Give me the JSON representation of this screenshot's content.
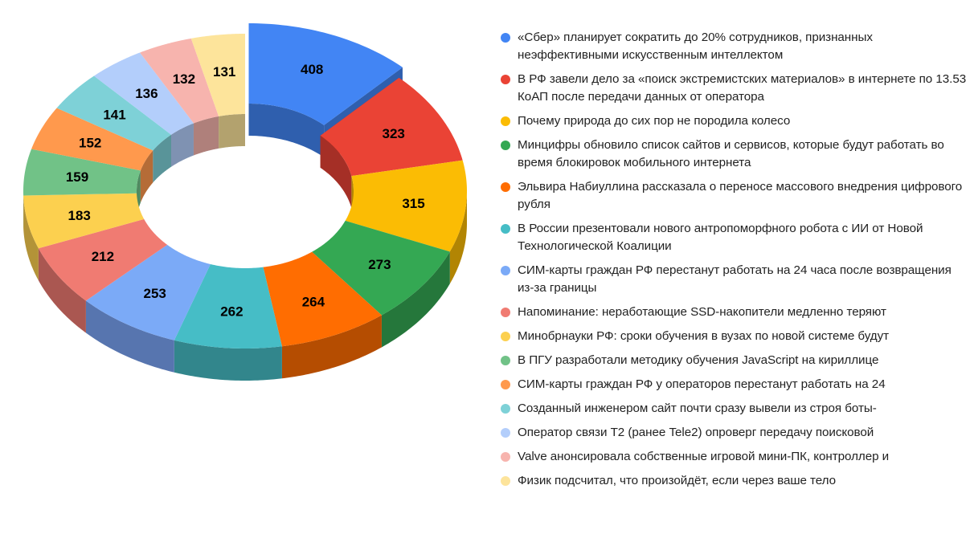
{
  "chart_data": {
    "type": "pie",
    "variant": "3d-donut",
    "title": "",
    "start_angle_deg": 0,
    "direction": "clockwise",
    "exploded_index": 0,
    "legend_position": "right",
    "categories": [
      "«Сбер» планирует сократить до 20% сотрудников, признанных неэффективными искусственным интеллектом",
      "В РФ завели дело за «поиск экстремистских материалов» в интернете по 13.53 КоАП после передачи данных от оператора",
      "Почему природа до сих пор не породила колесо",
      "Минцифры обновило список сайтов и сервисов, которые будут работать во время блокировок мобильного интернета",
      "Эльвира Набиуллина рассказала о переносе массового внедрения цифрового рубля",
      "В России презентовали нового антропоморфного робота с ИИ от Новой Технологической Коалиции",
      "СИМ-карты граждан РФ перестанут работать на 24 часа после возвращения из-за границы",
      "Напоминание: неработающие SSD-накопители медленно теряют",
      "Минобрнауки РФ: сроки обучения в вузах по новой системе будут",
      "В ПГУ разработали методику обучения JavaScript на кириллице",
      "СИМ-карты граждан РФ у операторов перестанут работать на 24",
      "Созданный инженером сайт почти сразу вывели из строя боты-",
      "Оператор связи T2 (ранее Tele2) опроверг передачу поисковой",
      "Valve анонсировала собственные игровой мини-ПК, контроллер и",
      "Физик подсчитал, что произойдёт, если через ваше тело"
    ],
    "values": [
      408,
      323,
      315,
      273,
      264,
      262,
      253,
      212,
      183,
      159,
      152,
      141,
      136,
      132,
      131
    ],
    "labels": [
      "408",
      "323",
      "315",
      "273",
      "264",
      "262",
      "253",
      "212",
      "183",
      "159",
      "152",
      "141",
      "136",
      "132",
      "131"
    ],
    "colors": [
      "#4285f4",
      "#ea4335",
      "#fbbc04",
      "#34a853",
      "#ff6d01",
      "#46bdc6",
      "#7baaf7",
      "#f07b72",
      "#fcd04f",
      "#71c287",
      "#ff994d",
      "#7ed1d7",
      "#b3cefb",
      "#f7b4ae",
      "#fde49b"
    ],
    "side_colors": [
      "#2f5fae",
      "#a52f26",
      "#b28503",
      "#25773b",
      "#b54d01",
      "#32868c",
      "#5775af",
      "#aa5751",
      "#b39338",
      "#508a60",
      "#b56c37",
      "#599499",
      "#7f92b2",
      "#af807b",
      "#b3a26e"
    ]
  },
  "legend": {
    "items": [
      {
        "label": "«Сбер» планирует сократить до 20% сотрудников, признанных неэффективными искусственным интеллектом",
        "color": "#4285f4"
      },
      {
        "label": "В РФ завели дело за «поиск экстремистских материалов» в интернете по 13.53 КоАП после передачи данных от оператора",
        "color": "#ea4335"
      },
      {
        "label": "Почему природа до сих пор не породила колесо",
        "color": "#fbbc04"
      },
      {
        "label": "Минцифры обновило список сайтов и сервисов, которые будут работать во время блокировок мобильного интернета",
        "color": "#34a853"
      },
      {
        "label": "Эльвира Набиуллина рассказала о переносе массового внедрения цифрового рубля",
        "color": "#ff6d01"
      },
      {
        "label": "В России презентовали нового антропоморфного робота с ИИ от Новой Технологической Коалиции",
        "color": "#46bdc6"
      },
      {
        "label": "СИМ-карты граждан РФ перестанут работать на 24 часа после возвращения из-за границы",
        "color": "#7baaf7"
      },
      {
        "label": "Напоминание: неработающие SSD-накопители медленно теряют",
        "color": "#f07b72"
      },
      {
        "label": "Минобрнауки РФ: сроки обучения в вузах по новой системе будут",
        "color": "#fcd04f"
      },
      {
        "label": "В ПГУ разработали методику обучения JavaScript на кириллице",
        "color": "#71c287"
      },
      {
        "label": "СИМ-карты граждан РФ у операторов перестанут работать на 24",
        "color": "#ff994d"
      },
      {
        "label": "Созданный инженером сайт почти сразу вывели из строя боты-",
        "color": "#7ed1d7"
      },
      {
        "label": "Оператор связи T2 (ранее Tele2) опроверг передачу поисковой",
        "color": "#b3cefb"
      },
      {
        "label": "Valve анонсировала собственные игровой мини-ПК, контроллер и",
        "color": "#f7b4ae"
      },
      {
        "label": "Физик подсчитал, что произойдёт, если через ваше тело",
        "color": "#fde49b"
      }
    ]
  }
}
